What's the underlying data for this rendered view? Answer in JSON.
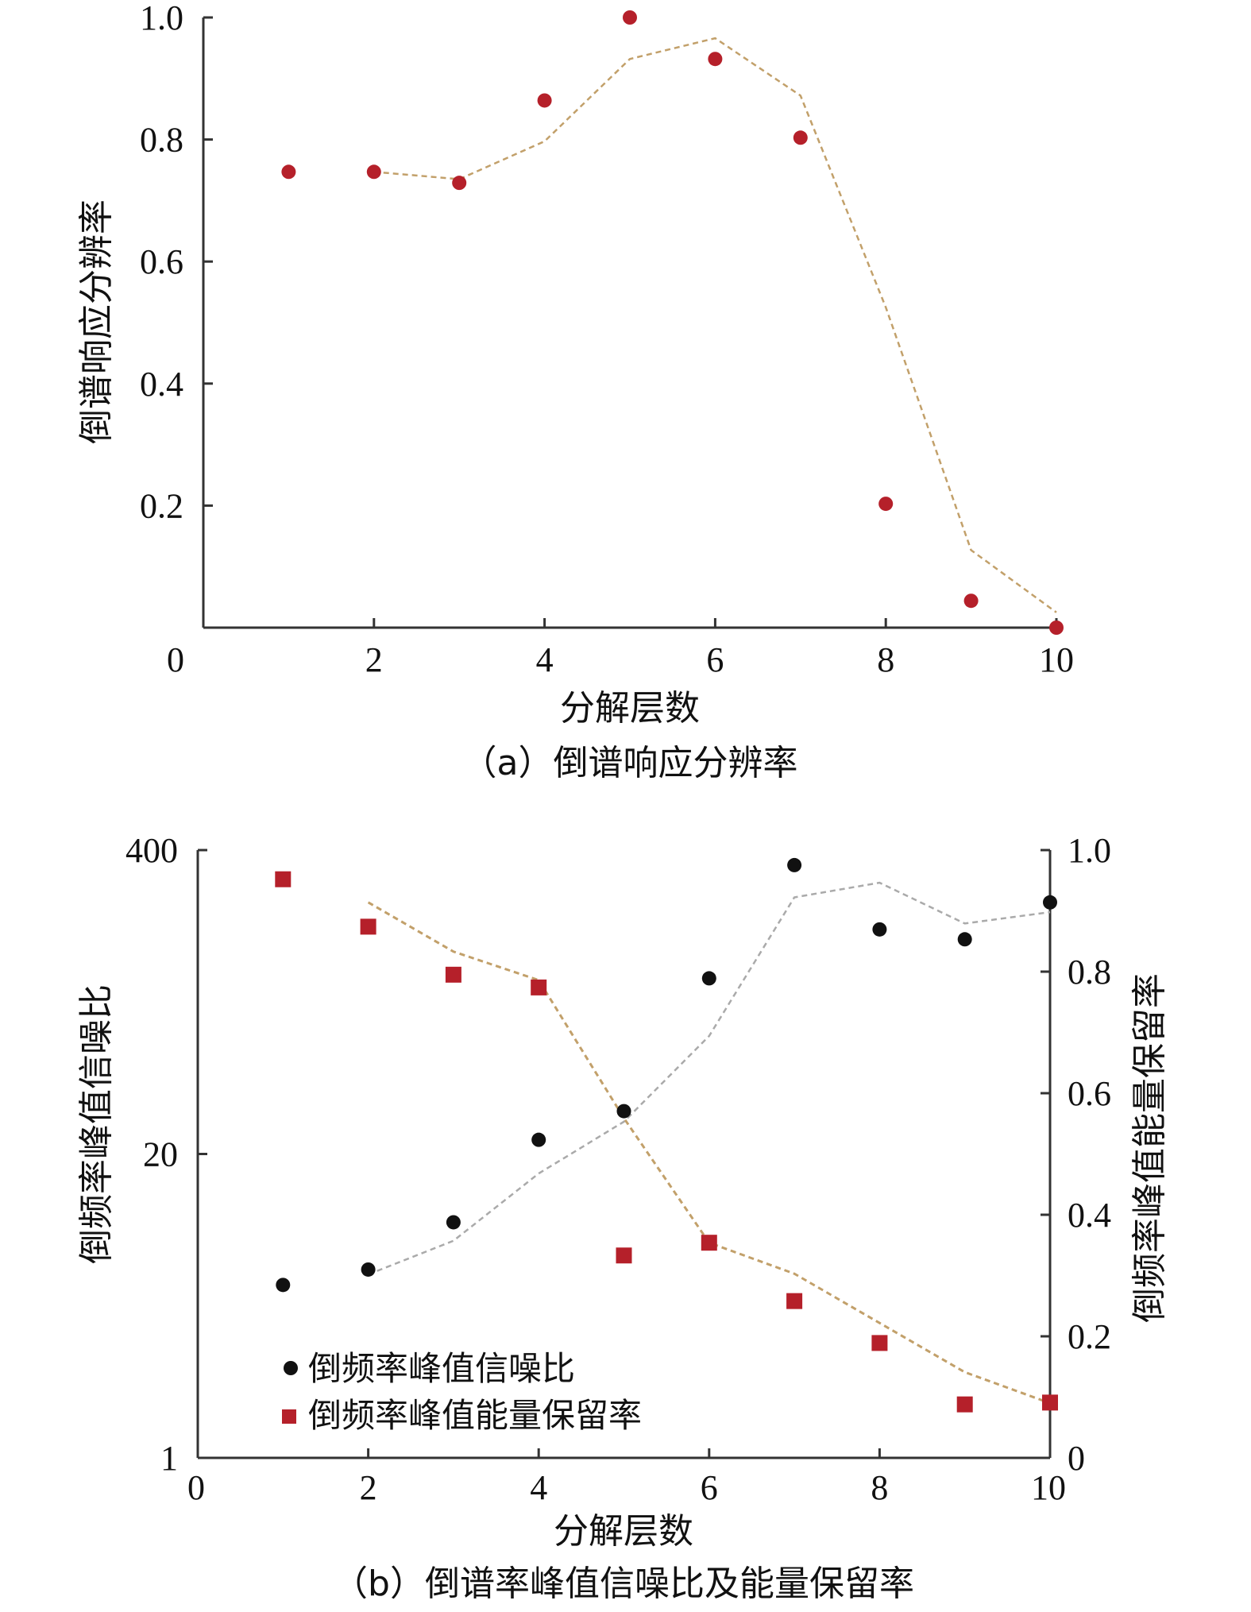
{
  "chart_data": [
    {
      "type": "scatter",
      "caption": "（a）倒谱响应分辨率",
      "xlabel": "分解层数",
      "ylabel": "倒谱响应分辨率",
      "xlim": [
        0,
        10
      ],
      "ylim": [
        0,
        1.0
      ],
      "xticks": [
        0,
        2,
        4,
        6,
        8,
        10
      ],
      "yticks": [
        0.2,
        0.4,
        0.6,
        0.8,
        1.0
      ],
      "xtick_labels": [
        "0",
        "2",
        "4",
        "6",
        "8",
        "10"
      ],
      "ytick_labels": [
        "0.2",
        "0.4",
        "0.6",
        "0.8",
        "1.0"
      ],
      "points": {
        "x": [
          1,
          2,
          3,
          4,
          5,
          6,
          7,
          8,
          9,
          10
        ],
        "y": [
          0.747,
          0.747,
          0.729,
          0.864,
          1.0,
          0.932,
          0.803,
          0.203,
          0.044,
          0.0
        ]
      },
      "trend": {
        "x": [
          2,
          3,
          4,
          5,
          6,
          7,
          8,
          9,
          10
        ],
        "y": [
          0.747,
          0.735,
          0.797,
          0.932,
          0.966,
          0.872,
          0.525,
          0.127,
          0.025
        ]
      },
      "colors": {
        "points": "#b5202a",
        "trend": "#c2a06a"
      }
    },
    {
      "type": "scatter",
      "caption": "（b）倒谱率峰值信噪比及能量保留率",
      "xlabel": "分解层数",
      "ylabel_left": "倒频率峰值信噪比",
      "ylabel_right": "倒频率峰值能量保留率",
      "xlim": [
        0,
        10
      ],
      "ylim_left": [
        1,
        400
      ],
      "yscale_left": "log",
      "ylim_right": [
        0,
        1.0
      ],
      "xticks": [
        0,
        2,
        4,
        6,
        8,
        10
      ],
      "xtick_labels": [
        "0",
        "2",
        "4",
        "6",
        "8",
        "10"
      ],
      "yticks_left": [
        1,
        20,
        400
      ],
      "ytick_labels_left": [
        "1",
        "20",
        "400"
      ],
      "yticks_right": [
        0,
        0.2,
        0.4,
        0.6,
        0.8,
        1.0
      ],
      "ytick_labels_right": [
        "0",
        "0.2",
        "0.4",
        "0.6",
        "0.8",
        "1.0"
      ],
      "legend": {
        "position": "bottom-left",
        "entries": [
          "倒频率峰值信噪比",
          "倒频率峰值能量保留率"
        ]
      },
      "series": [
        {
          "name": "倒频率峰值信噪比",
          "axis": "left",
          "marker": "circle",
          "x": [
            1,
            2,
            3,
            4,
            5,
            6,
            7,
            8,
            9,
            10
          ],
          "y": [
            5.5,
            6.4,
            10.2,
            23,
            30.5,
            113,
            345,
            183,
            166,
            239
          ],
          "trend": {
            "x": [
              2,
              3,
              4,
              5,
              6,
              7,
              8,
              9,
              10
            ],
            "y": [
              6.1,
              8.5,
              16.5,
              27.5,
              64,
              251,
              290,
              194,
              217
            ]
          },
          "color": "#111111",
          "trend_color": "#aaaaaa"
        },
        {
          "name": "倒频率峰值能量保留率",
          "axis": "right",
          "marker": "square",
          "x": [
            1,
            2,
            3,
            4,
            5,
            6,
            7,
            8,
            9,
            10
          ],
          "y": [
            0.952,
            0.874,
            0.795,
            0.774,
            0.333,
            0.354,
            0.258,
            0.189,
            0.088,
            0.091
          ],
          "trend": {
            "x": [
              2,
              3,
              4,
              5,
              6,
              7,
              8,
              9,
              10
            ],
            "y": [
              0.914,
              0.833,
              0.786,
              0.559,
              0.354,
              0.303,
              0.222,
              0.141,
              0.09
            ]
          },
          "color": "#b5202a",
          "trend_color": "#c2a06a"
        }
      ]
    }
  ]
}
